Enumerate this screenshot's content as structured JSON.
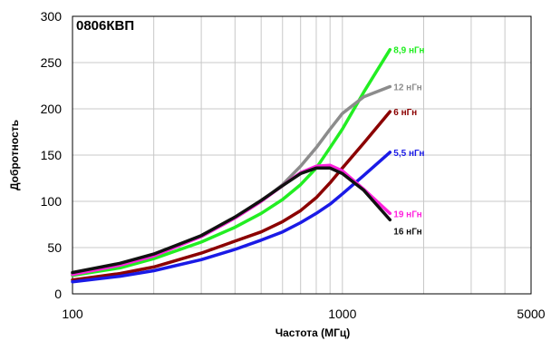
{
  "chart_data": {
    "type": "line",
    "title": "0806КВП",
    "xlabel": "Частота (МГц)",
    "ylabel": "Добротность",
    "x_scale": "log",
    "xlim": [
      100,
      5000
    ],
    "ylim": [
      0,
      300
    ],
    "x_ticks": [
      100,
      1000,
      5000
    ],
    "y_ticks": [
      0,
      50,
      100,
      150,
      200,
      250,
      300
    ],
    "grid": true,
    "series": [
      {
        "name": "8,9 нГн",
        "color": "#22ee22",
        "x": [
          100,
          150,
          200,
          300,
          400,
          500,
          600,
          700,
          800,
          900,
          1000,
          1200,
          1500
        ],
        "y": [
          20,
          28,
          38,
          56,
          72,
          87,
          102,
          118,
          136,
          158,
          178,
          218,
          264
        ]
      },
      {
        "name": "12 нГн",
        "color": "#8c8c8c",
        "x": [
          100,
          150,
          200,
          300,
          400,
          500,
          600,
          700,
          800,
          900,
          1000,
          1200,
          1500
        ],
        "y": [
          22,
          32,
          42,
          62,
          82,
          100,
          118,
          138,
          158,
          178,
          195,
          213,
          224
        ]
      },
      {
        "name": "6 нГн",
        "color": "#8b0000",
        "x": [
          100,
          150,
          200,
          300,
          400,
          500,
          600,
          700,
          800,
          900,
          1000,
          1200,
          1500
        ],
        "y": [
          15,
          22,
          29,
          44,
          57,
          67,
          78,
          90,
          104,
          120,
          136,
          163,
          197
        ]
      },
      {
        "name": "5,5 нГн",
        "color": "#1a1ae6",
        "x": [
          100,
          150,
          200,
          300,
          400,
          500,
          600,
          700,
          800,
          900,
          1000,
          1200,
          1500
        ],
        "y": [
          13,
          19,
          25,
          37,
          48,
          58,
          67,
          77,
          87,
          97,
          108,
          128,
          153
        ]
      },
      {
        "name": "19 нГн",
        "color": "#ff22dd",
        "x": [
          100,
          150,
          200,
          300,
          400,
          500,
          600,
          700,
          800,
          900,
          1000,
          1200,
          1500
        ],
        "y": [
          21,
          31,
          41,
          62,
          82,
          100,
          117,
          131,
          138,
          139,
          133,
          113,
          87
        ]
      },
      {
        "name": "16 нГн",
        "color": "#111111",
        "x": [
          100,
          150,
          200,
          300,
          400,
          500,
          600,
          700,
          800,
          900,
          1000,
          1200,
          1500
        ],
        "y": [
          23,
          33,
          43,
          63,
          83,
          101,
          117,
          130,
          136,
          136,
          130,
          112,
          80
        ]
      }
    ]
  }
}
